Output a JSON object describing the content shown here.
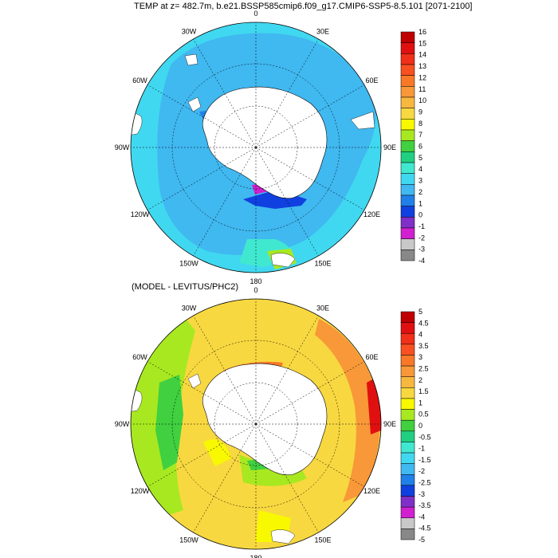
{
  "titles": {
    "top": "TEMP at z= 482.7m, b.e21.BSSP585cmip6.f09_g17.CMIP6-SSP5-8.5.101 [2071-2100]",
    "bottom": "(MODEL - LEVITUS/PHC2)"
  },
  "longitude_labels": [
    "0",
    "30E",
    "60E",
    "90E",
    "120E",
    "150E",
    "180",
    "150W",
    "120W",
    "90W",
    "60W",
    "30W"
  ],
  "maps": [
    {
      "name": "top-map",
      "colorbar": {
        "labels": [
          "16",
          "15",
          "14",
          "13",
          "12",
          "11",
          "10",
          "9",
          "8",
          "7",
          "6",
          "5",
          "4",
          "3",
          "2",
          "1",
          "0",
          "-1",
          "-2",
          "-3",
          "-4"
        ],
        "colors": [
          "#c00000",
          "#e01010",
          "#f03018",
          "#f85020",
          "#f87828",
          "#f89838",
          "#f8b840",
          "#f8d840",
          "#f8f800",
          "#a8e820",
          "#40d040",
          "#20d080",
          "#40e8d0",
          "#40d8f0",
          "#40b8f0",
          "#2080e8",
          "#1040e0",
          "#8030c8",
          "#d020d0",
          "#c8c8c8",
          "#888888"
        ]
      }
    },
    {
      "name": "bottom-map",
      "colorbar": {
        "labels": [
          "5",
          "4.5",
          "4",
          "3.5",
          "3",
          "2.5",
          "2",
          "1.5",
          "1",
          "0.5",
          "0",
          "-0.5",
          "-1",
          "-1.5",
          "-2",
          "-2.5",
          "-3",
          "-3.5",
          "-4",
          "-4.5",
          "-5"
        ],
        "colors": [
          "#c00000",
          "#e01010",
          "#f03018",
          "#f85020",
          "#f87828",
          "#f89838",
          "#f8b840",
          "#f8d840",
          "#f8f800",
          "#a8e820",
          "#40d040",
          "#20d080",
          "#40e8d0",
          "#40d8f0",
          "#40b8f0",
          "#2080e8",
          "#1040e0",
          "#8030c8",
          "#d020d0",
          "#c8c8c8",
          "#888888"
        ]
      }
    }
  ]
}
